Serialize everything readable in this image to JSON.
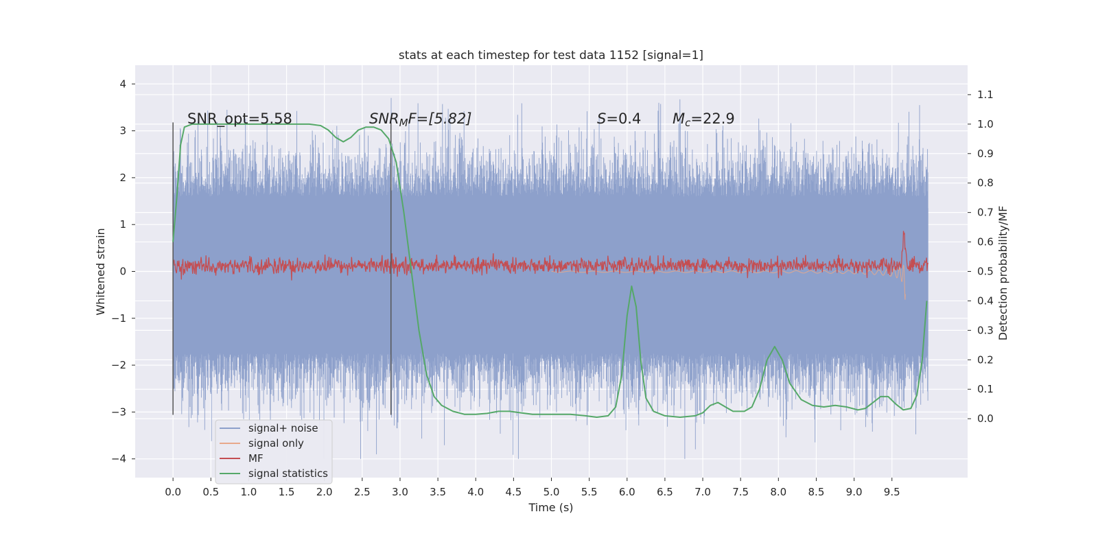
{
  "chart_data": {
    "type": "line",
    "title": "stats at each timestep for test data 1152 [signal=1]",
    "xlabel": "Time (s)",
    "ylabel_left": "Whitened strain",
    "ylabel_right": "Detection probability/MF",
    "xlim": [
      -0.5,
      10.5
    ],
    "ylim_left": [
      -4.4,
      4.4
    ],
    "ylim_right": [
      -0.2,
      1.2
    ],
    "x_ticks": [
      "0.0",
      "0.5",
      "1.0",
      "1.5",
      "2.0",
      "2.5",
      "3.0",
      "3.5",
      "4.0",
      "4.5",
      "5.0",
      "5.5",
      "6.0",
      "6.5",
      "7.0",
      "7.5",
      "8.0",
      "8.5",
      "9.0",
      "9.5"
    ],
    "y_ticks_left": [
      "4",
      "3",
      "2",
      "1",
      "0",
      "−1",
      "−2",
      "−3",
      "−4"
    ],
    "y_ticks_right": [
      "1.1",
      "1.0",
      "0.9",
      "0.8",
      "0.7",
      "0.6",
      "0.5",
      "0.4",
      "0.3",
      "0.2",
      "0.1",
      "0.0"
    ],
    "grid": true,
    "legend_position": "bottom-left",
    "annotations": {
      "snr_opt": "SNR_opt=5.58",
      "snr_mf_main": "SNR",
      "snr_mf_sub": "M",
      "snr_mf_rest": "F=[5.82]",
      "s_main": "S",
      "s_rest": "=0.4",
      "mc_main": "M",
      "mc_sub": "c",
      "mc_rest": "=22.9"
    },
    "vlines": [
      0.0,
      2.88
    ],
    "series": [
      {
        "name": "signal+ noise",
        "color": "#8da0cb",
        "axis": "left",
        "kind": "noise",
        "x_range": [
          0.0,
          9.98
        ],
        "y_range_typical": [
          -2.0,
          2.0
        ],
        "y_extreme": [
          -4.0,
          4.05
        ]
      },
      {
        "name": "signal only",
        "color": "#e8a88b",
        "axis": "left",
        "kind": "chirp",
        "x_range": [
          5.0,
          9.68
        ],
        "peak_amplitude": 1.3
      },
      {
        "name": "MF",
        "color": "#c44e52",
        "axis": "right",
        "kind": "mf",
        "x_range": [
          0.0,
          9.98
        ],
        "baseline": 0.51,
        "spike": {
          "x": 9.66,
          "y": 0.63
        }
      },
      {
        "name": "signal statistics",
        "color": "#55a868",
        "axis": "right",
        "kind": "line",
        "points": [
          [
            0.0,
            0.6
          ],
          [
            0.05,
            0.75
          ],
          [
            0.1,
            0.93
          ],
          [
            0.15,
            0.99
          ],
          [
            0.25,
            1.0
          ],
          [
            0.5,
            1.0
          ],
          [
            1.0,
            1.0
          ],
          [
            1.5,
            1.0
          ],
          [
            1.8,
            1.0
          ],
          [
            1.95,
            0.995
          ],
          [
            2.05,
            0.98
          ],
          [
            2.15,
            0.955
          ],
          [
            2.25,
            0.94
          ],
          [
            2.35,
            0.955
          ],
          [
            2.45,
            0.98
          ],
          [
            2.55,
            0.99
          ],
          [
            2.65,
            0.99
          ],
          [
            2.75,
            0.98
          ],
          [
            2.85,
            0.95
          ],
          [
            2.95,
            0.87
          ],
          [
            3.05,
            0.7
          ],
          [
            3.15,
            0.5
          ],
          [
            3.25,
            0.3
          ],
          [
            3.35,
            0.15
          ],
          [
            3.45,
            0.075
          ],
          [
            3.55,
            0.045
          ],
          [
            3.7,
            0.025
          ],
          [
            3.85,
            0.015
          ],
          [
            4.0,
            0.015
          ],
          [
            4.15,
            0.018
          ],
          [
            4.3,
            0.025
          ],
          [
            4.45,
            0.025
          ],
          [
            4.6,
            0.02
          ],
          [
            4.75,
            0.015
          ],
          [
            5.0,
            0.015
          ],
          [
            5.25,
            0.015
          ],
          [
            5.45,
            0.01
          ],
          [
            5.6,
            0.005
          ],
          [
            5.75,
            0.01
          ],
          [
            5.85,
            0.04
          ],
          [
            5.93,
            0.15
          ],
          [
            6.0,
            0.35
          ],
          [
            6.06,
            0.45
          ],
          [
            6.12,
            0.38
          ],
          [
            6.18,
            0.2
          ],
          [
            6.25,
            0.07
          ],
          [
            6.35,
            0.025
          ],
          [
            6.5,
            0.01
          ],
          [
            6.7,
            0.005
          ],
          [
            6.9,
            0.01
          ],
          [
            7.0,
            0.02
          ],
          [
            7.1,
            0.045
          ],
          [
            7.2,
            0.055
          ],
          [
            7.3,
            0.04
          ],
          [
            7.4,
            0.025
          ],
          [
            7.55,
            0.025
          ],
          [
            7.65,
            0.04
          ],
          [
            7.75,
            0.1
          ],
          [
            7.85,
            0.2
          ],
          [
            7.95,
            0.245
          ],
          [
            8.05,
            0.2
          ],
          [
            8.15,
            0.12
          ],
          [
            8.3,
            0.065
          ],
          [
            8.45,
            0.045
          ],
          [
            8.6,
            0.04
          ],
          [
            8.75,
            0.045
          ],
          [
            8.9,
            0.04
          ],
          [
            9.05,
            0.03
          ],
          [
            9.15,
            0.035
          ],
          [
            9.25,
            0.055
          ],
          [
            9.35,
            0.075
          ],
          [
            9.45,
            0.075
          ],
          [
            9.55,
            0.05
          ],
          [
            9.65,
            0.03
          ],
          [
            9.75,
            0.035
          ],
          [
            9.83,
            0.08
          ],
          [
            9.9,
            0.2
          ],
          [
            9.96,
            0.4
          ]
        ]
      }
    ]
  }
}
